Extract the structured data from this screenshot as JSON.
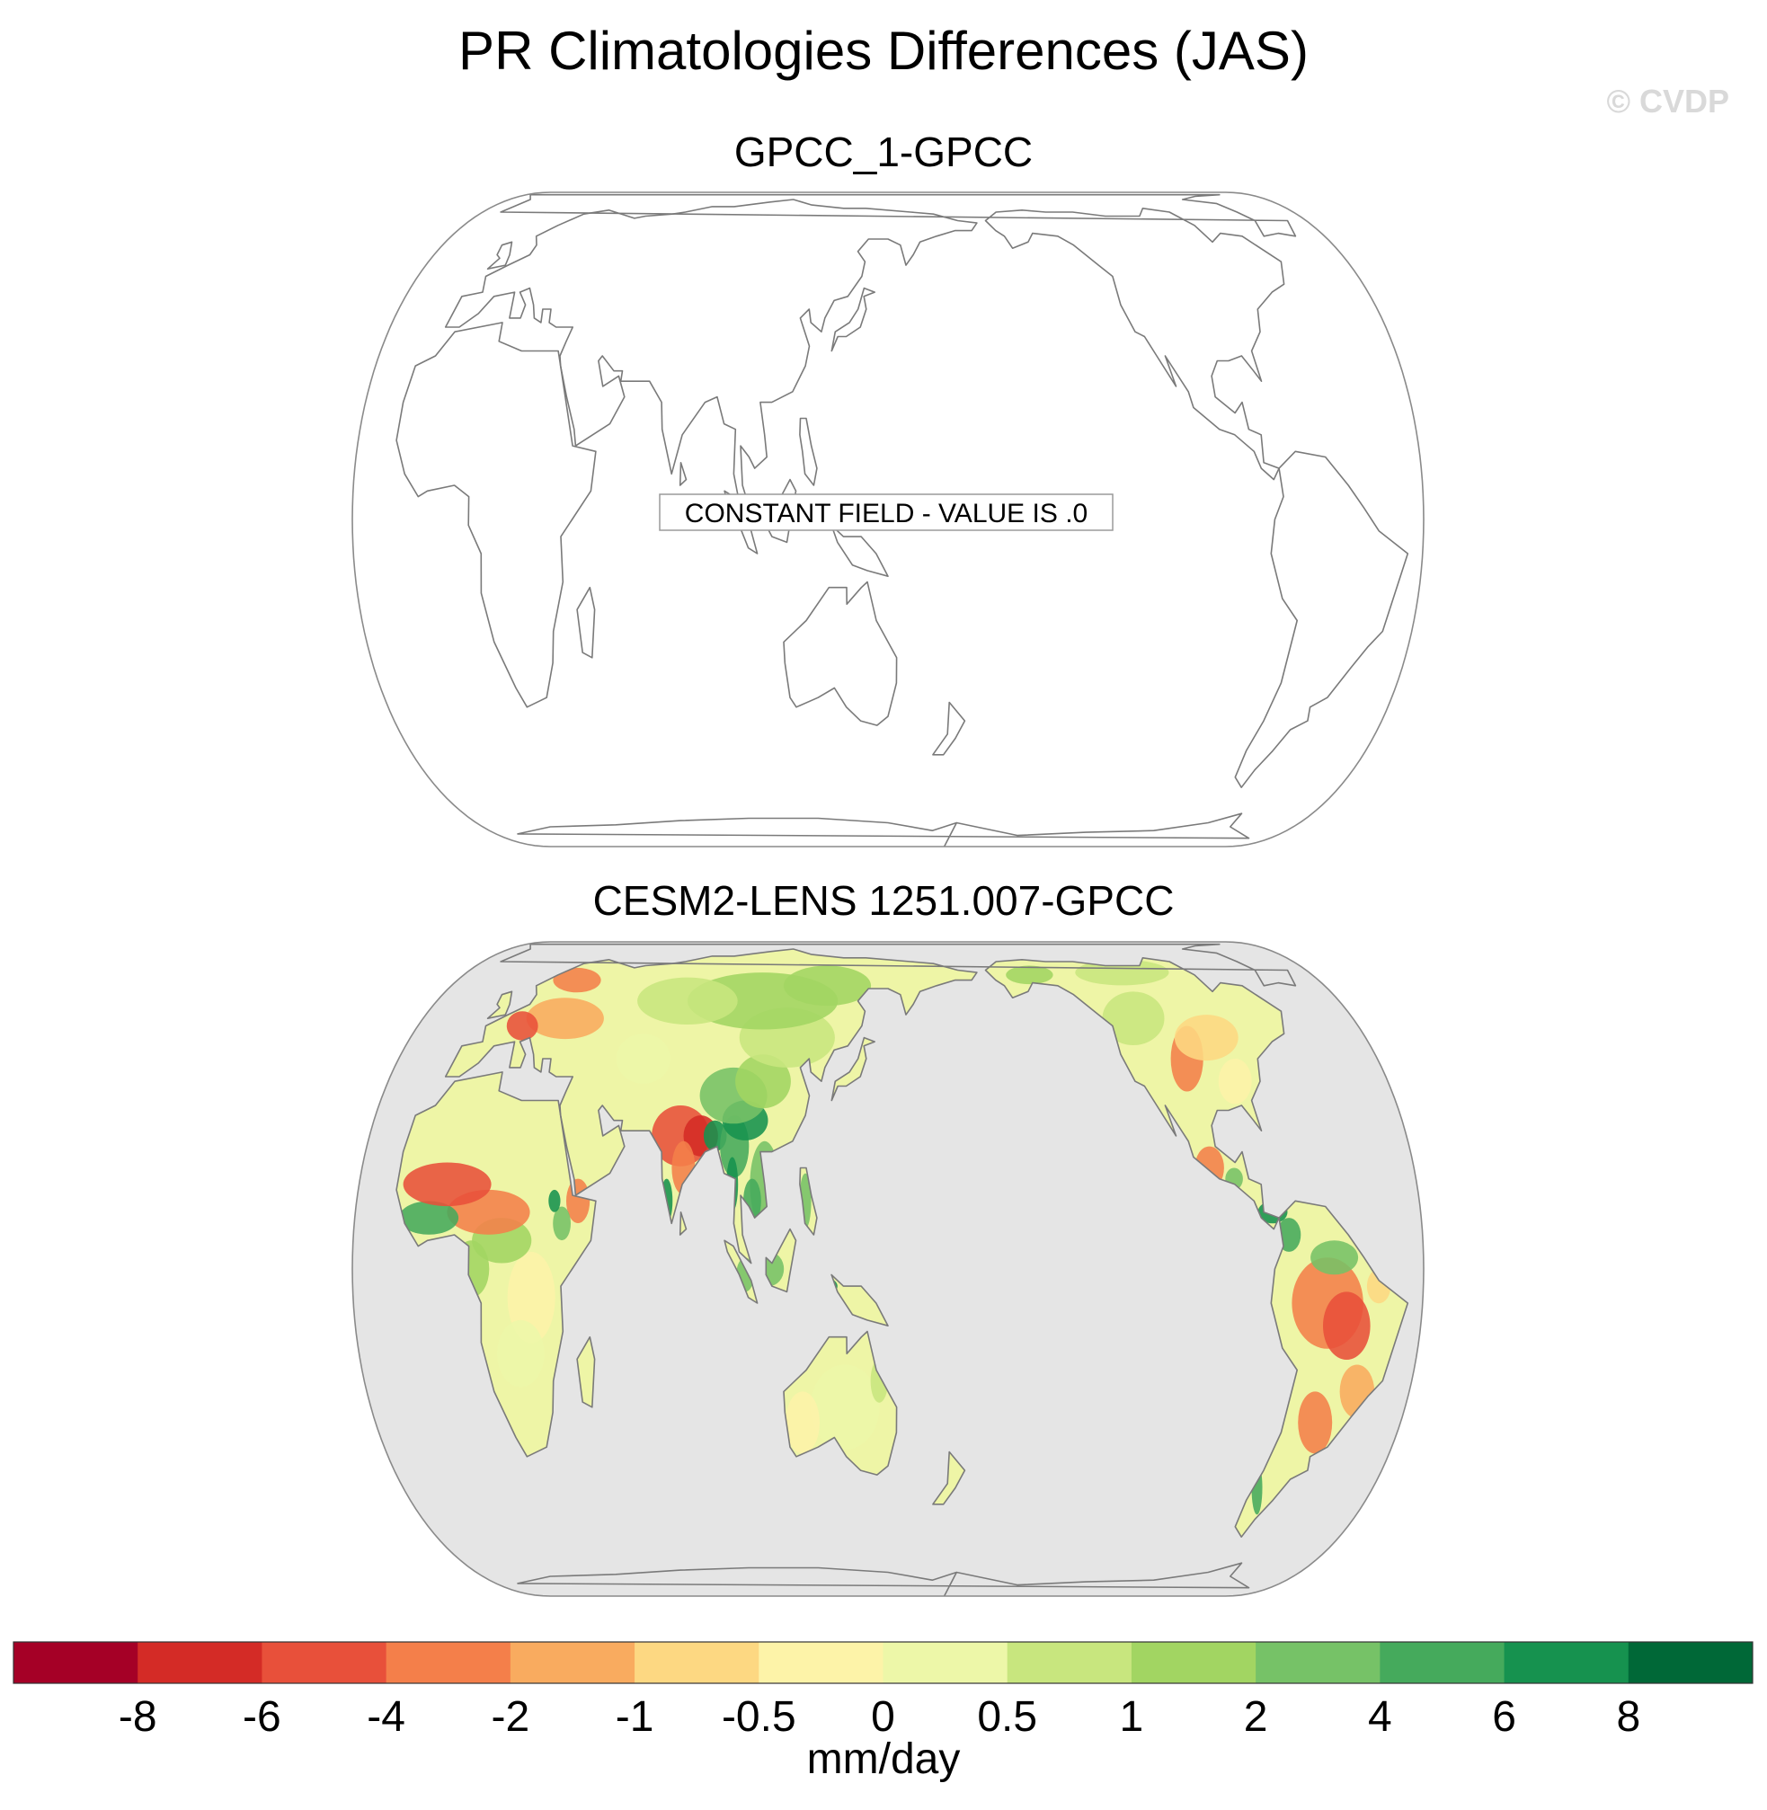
{
  "title": "PR Climatologies Differences (JAS)",
  "watermark": "© CVDP",
  "panels": [
    {
      "title": "GPCC_1-GPCC",
      "note": "CONSTANT FIELD - VALUE IS .0",
      "ocean_fill": "#ffffff"
    },
    {
      "title": "CESM2-LENS 1251.007-GPCC",
      "ocean_fill": "#e5e5e5"
    }
  ],
  "colorbar": {
    "units": "mm/day",
    "tick_labels": [
      "-8",
      "-6",
      "-4",
      "-2",
      "-1",
      "-0.5",
      "0",
      "0.5",
      "1",
      "2",
      "4",
      "6",
      "8"
    ],
    "colors": [
      "#a50026",
      "#d42b26",
      "#e8503a",
      "#f47f4a",
      "#f9ab5f",
      "#fdd882",
      "#fdf3a8",
      "#edf7a8",
      "#c8e67e",
      "#a2d562",
      "#76c267",
      "#45aa5c",
      "#16924f",
      "#006837"
    ]
  },
  "colors": {
    "coast": "#7a7a7a",
    "land_base": "#eef5a6"
  }
}
